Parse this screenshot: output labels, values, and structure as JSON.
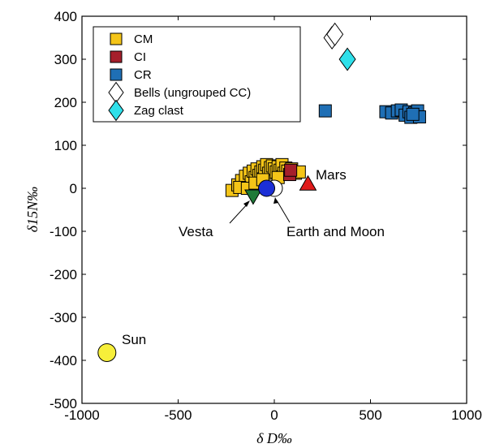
{
  "chart_data": {
    "type": "scatter",
    "title": "",
    "xlabel": "δ D‰",
    "ylabel": "δ15N‰",
    "xlim": [
      -1000,
      1000
    ],
    "ylim": [
      -500,
      400
    ],
    "xticks": [
      "-1000",
      "-500",
      "0",
      "500",
      "1000"
    ],
    "yticks": [
      "400",
      "300",
      "200",
      "100",
      "0",
      "-100",
      "-200",
      "-300",
      "-400",
      "-500"
    ],
    "grid": false,
    "legend_position": "top-left",
    "series": [
      {
        "name": "CM",
        "marker": "square",
        "color": "#f5c518",
        "points": [
          [
            -220,
            -5
          ],
          [
            -190,
            8
          ],
          [
            -170,
            18
          ],
          [
            -150,
            5
          ],
          [
            -150,
            28
          ],
          [
            -130,
            35
          ],
          [
            -120,
            15
          ],
          [
            -110,
            40
          ],
          [
            -100,
            25
          ],
          [
            -90,
            45
          ],
          [
            -80,
            30
          ],
          [
            -70,
            38
          ],
          [
            -60,
            50
          ],
          [
            -50,
            42
          ],
          [
            -40,
            55
          ],
          [
            -30,
            35
          ],
          [
            -20,
            48
          ],
          [
            -10,
            52
          ],
          [
            0,
            45
          ],
          [
            10,
            38
          ],
          [
            20,
            50
          ],
          [
            30,
            42
          ],
          [
            40,
            55
          ],
          [
            50,
            35
          ],
          [
            60,
            47
          ],
          [
            70,
            40
          ],
          [
            90,
            45
          ],
          [
            110,
            35
          ],
          [
            -180,
            2
          ],
          [
            -140,
            0
          ],
          [
            -100,
            12
          ],
          [
            -60,
            20
          ],
          [
            20,
            25
          ],
          [
            130,
            38
          ]
        ]
      },
      {
        "name": "CI",
        "marker": "square",
        "color": "#a51f2b",
        "points": [
          [
            80,
            32
          ],
          [
            85,
            42
          ]
        ]
      },
      {
        "name": "CR",
        "marker": "square",
        "color": "#1f6fb5",
        "points": [
          [
            265,
            180
          ],
          [
            580,
            178
          ],
          [
            610,
            175
          ],
          [
            640,
            180
          ],
          [
            660,
            182
          ],
          [
            680,
            170
          ],
          [
            700,
            178
          ],
          [
            710,
            165
          ],
          [
            730,
            175
          ],
          [
            745,
            180
          ],
          [
            755,
            166
          ],
          [
            720,
            172
          ]
        ]
      },
      {
        "name": "Bells (ungrouped CC)",
        "marker": "diamond",
        "color": "#ffffff",
        "points": [
          [
            300,
            350
          ],
          [
            315,
            358
          ]
        ]
      },
      {
        "name": "Zag clast",
        "marker": "diamond",
        "color": "#2fe0ea",
        "points": [
          [
            380,
            300
          ]
        ]
      }
    ],
    "bodies": [
      {
        "label": "Sun",
        "marker": "circle",
        "color": "#f7ef3a",
        "x": -870,
        "y": -382
      },
      {
        "label": "Mars",
        "marker": "triangle-up",
        "color": "#e01a1a",
        "x": 175,
        "y": 10
      },
      {
        "label": "Vesta",
        "marker": "triangle-down",
        "color": "#1f7a38",
        "x": -110,
        "y": -18
      },
      {
        "label": "Earth and Moon",
        "marker": "circle",
        "color": "#ffffff",
        "x": 0,
        "y": 0
      },
      {
        "label": "Earth and Moon",
        "marker": "circle",
        "color": "#1c2fd6",
        "x": -40,
        "y": 0
      }
    ],
    "annotations": {
      "sun": "Sun",
      "mars": "Mars",
      "vesta": "Vesta",
      "earth_moon": "Earth and Moon"
    }
  }
}
